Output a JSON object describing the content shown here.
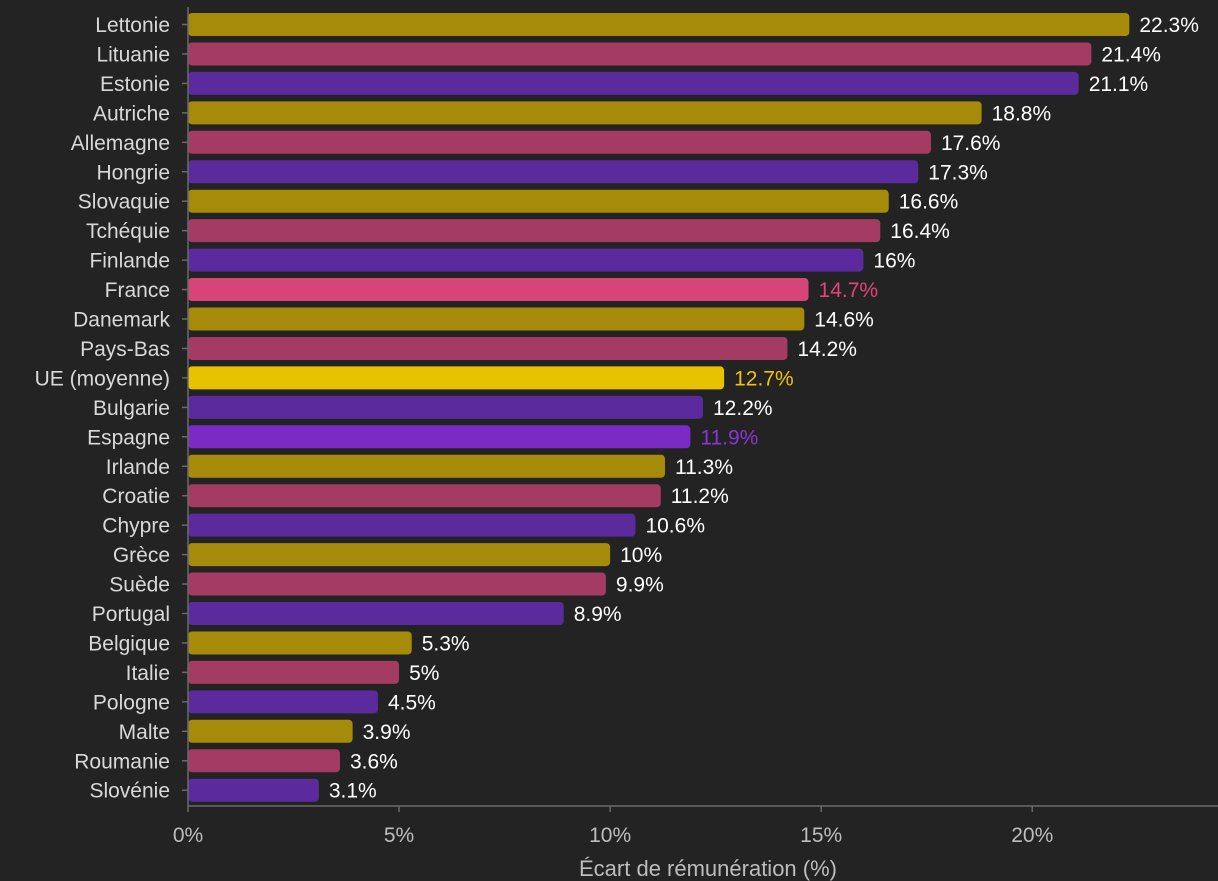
{
  "chart_data": {
    "type": "bar",
    "orientation": "horizontal",
    "categories": [
      "Lettonie",
      "Lituanie",
      "Estonie",
      "Autriche",
      "Allemagne",
      "Hongrie",
      "Slovaquie",
      "Tchéquie",
      "Finlande",
      "France",
      "Danemark",
      "Pays-Bas",
      "UE (moyenne)",
      "Bulgarie",
      "Espagne",
      "Irlande",
      "Croatie",
      "Chypre",
      "Grèce",
      "Suède",
      "Portugal",
      "Belgique",
      "Italie",
      "Pologne",
      "Malte",
      "Roumanie",
      "Slovénie"
    ],
    "values": [
      22.3,
      21.4,
      21.1,
      18.8,
      17.6,
      17.3,
      16.6,
      16.4,
      16,
      14.7,
      14.6,
      14.2,
      12.7,
      12.2,
      11.9,
      11.3,
      11.2,
      10.6,
      10,
      9.9,
      8.9,
      5.3,
      5,
      4.5,
      3.9,
      3.6,
      3.1
    ],
    "value_labels": [
      "22.3%",
      "21.4%",
      "21.1%",
      "18.8%",
      "17.6%",
      "17.3%",
      "16.6%",
      "16.4%",
      "16%",
      "14.7%",
      "14.6%",
      "14.2%",
      "12.7%",
      "12.2%",
      "11.9%",
      "11.3%",
      "11.2%",
      "10.6%",
      "10%",
      "9.9%",
      "8.9%",
      "5.3%",
      "5%",
      "4.5%",
      "3.9%",
      "3.6%",
      "3.1%"
    ],
    "colors": [
      "#a68b0b",
      "#a33b63",
      "#5b2a9c",
      "#a68b0b",
      "#a33b63",
      "#5b2a9c",
      "#a68b0b",
      "#a33b63",
      "#5b2a9c",
      "#d64478",
      "#a68b0b",
      "#a33b63",
      "#e6c200",
      "#5b2a9c",
      "#7b2bc4",
      "#a68b0b",
      "#a33b63",
      "#5b2a9c",
      "#a68b0b",
      "#a33b63",
      "#5b2a9c",
      "#a68b0b",
      "#a33b63",
      "#5b2a9c",
      "#a68b0b",
      "#a33b63",
      "#5b2a9c"
    ],
    "label_colors": [
      "#ffffff",
      "#ffffff",
      "#ffffff",
      "#ffffff",
      "#ffffff",
      "#ffffff",
      "#ffffff",
      "#ffffff",
      "#ffffff",
      "#e0457c",
      "#ffffff",
      "#ffffff",
      "#f0c400",
      "#ffffff",
      "#8a35d6",
      "#ffffff",
      "#ffffff",
      "#ffffff",
      "#ffffff",
      "#ffffff",
      "#ffffff",
      "#ffffff",
      "#ffffff",
      "#ffffff",
      "#ffffff",
      "#ffffff",
      "#ffffff"
    ],
    "x_ticks": [
      0,
      5,
      10,
      15,
      20
    ],
    "x_tick_labels": [
      "0%",
      "5%",
      "10%",
      "15%",
      "20%"
    ],
    "xlim": [
      0,
      24.4
    ],
    "xlabel": "Écart de rémunération (%)",
    "title": "",
    "grid": false,
    "legend": "none"
  }
}
